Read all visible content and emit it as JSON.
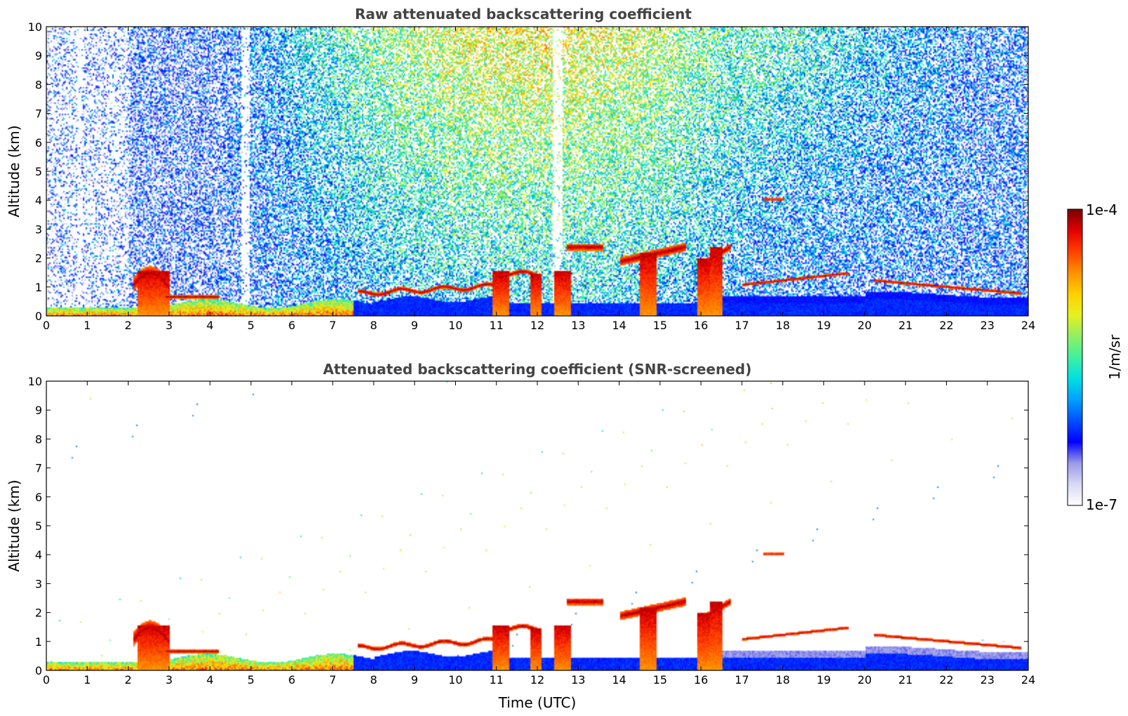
{
  "chart_data": [
    {
      "type": "heatmap",
      "title": "Raw attenuated backscattering coefficient",
      "xlabel": "",
      "ylabel": "Altitude (km)",
      "xlim": [
        0,
        24
      ],
      "ylim": [
        0,
        10
      ],
      "xticks": [
        "0",
        "1",
        "2",
        "3",
        "4",
        "5",
        "6",
        "7",
        "8",
        "9",
        "10",
        "11",
        "12",
        "13",
        "14",
        "15",
        "16",
        "17",
        "18",
        "19",
        "20",
        "21",
        "22",
        "23",
        "24"
      ],
      "yticks": [
        "0",
        "1",
        "2",
        "3",
        "4",
        "5",
        "6",
        "7",
        "8",
        "9",
        "10"
      ],
      "screened": false,
      "cloud_layers": [
        {
          "t": [
            2.1,
            3.0
          ],
          "alt": [
            0.6,
            1.6
          ]
        },
        {
          "t": [
            3.0,
            4.2
          ],
          "alt": [
            0.55,
            0.75
          ]
        },
        {
          "t": [
            7.8,
            9.5
          ],
          "alt": [
            0.7,
            0.95
          ]
        },
        {
          "t": [
            10.0,
            10.8
          ],
          "alt": [
            1.0,
            1.3
          ]
        },
        {
          "t": [
            11.2,
            12.0
          ],
          "alt": [
            1.3,
            1.6
          ]
        },
        {
          "t": [
            12.8,
            13.5
          ],
          "alt": [
            2.2,
            2.6
          ]
        },
        {
          "t": [
            14.0,
            15.6
          ],
          "alt": [
            1.6,
            2.5
          ]
        },
        {
          "t": [
            15.9,
            16.6
          ],
          "alt": [
            1.2,
            2.5
          ]
        },
        {
          "t": [
            17.0,
            19.6
          ],
          "alt": [
            1.1,
            1.5
          ]
        },
        {
          "t": [
            20.2,
            23.8
          ],
          "alt": [
            0.75,
            1.25
          ]
        },
        {
          "t": [
            17.5,
            18.0
          ],
          "alt": [
            4.0,
            4.1
          ]
        }
      ]
    },
    {
      "type": "heatmap",
      "title": "Attenuated backscattering coefficient (SNR-screened)",
      "xlabel": "Time (UTC)",
      "ylabel": "Altitude (km)",
      "xlim": [
        0,
        24
      ],
      "ylim": [
        0,
        10
      ],
      "xticks": [
        "0",
        "1",
        "2",
        "3",
        "4",
        "5",
        "6",
        "7",
        "8",
        "9",
        "10",
        "11",
        "12",
        "13",
        "14",
        "15",
        "16",
        "17",
        "18",
        "19",
        "20",
        "21",
        "22",
        "23",
        "24"
      ],
      "yticks": [
        "0",
        "1",
        "2",
        "3",
        "4",
        "5",
        "6",
        "7",
        "8",
        "9",
        "10"
      ],
      "screened": true
    }
  ],
  "colorbar": {
    "max_label": "1e-4",
    "min_label": "1e-7",
    "unit_label": "1/m/sr",
    "colors": [
      "#ffffff",
      "#d8d8f4",
      "#9a9ae8",
      "#0000ff",
      "#0050ff",
      "#00a0ff",
      "#00e0e0",
      "#40f0a0",
      "#90f060",
      "#e8f020",
      "#ffd000",
      "#ff9000",
      "#ff4000",
      "#e00000",
      "#7a0000"
    ]
  }
}
